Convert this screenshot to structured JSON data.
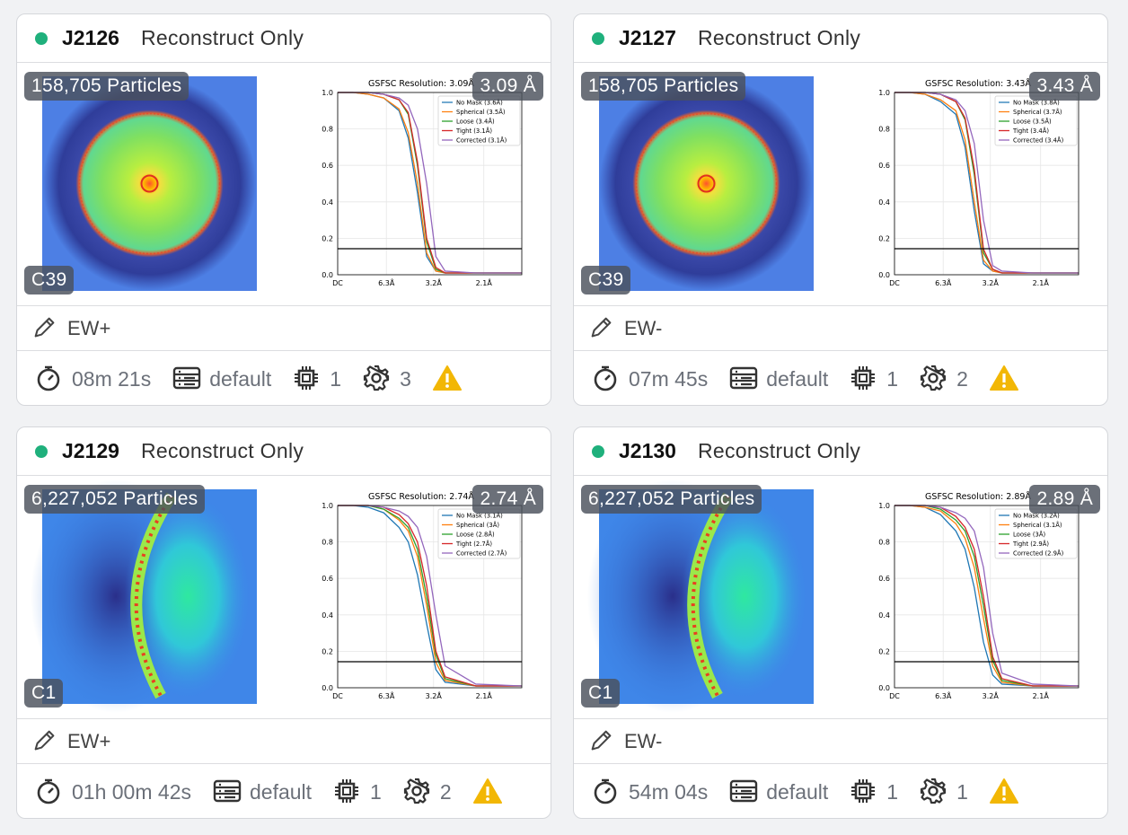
{
  "cards": [
    {
      "id": "J2126",
      "title": "Reconstruct Only",
      "particles": "158,705 Particles",
      "resolution": "3.09 Å",
      "symmetry": "C39",
      "note": "EW+",
      "time": "08m 21s",
      "lane": "default",
      "gpus": "1",
      "params": "3",
      "fsc": {
        "type": "line",
        "title": "GSFSC Resolution: 3.09Å",
        "x": [
          0,
          0.05,
          0.1,
          0.15,
          0.2,
          0.23,
          0.26,
          0.29,
          0.32,
          0.35,
          0.45,
          0.6
        ],
        "xlim": [
          0,
          0.6
        ],
        "ylim": [
          0,
          1
        ],
        "xticks": [
          {
            "value": 0,
            "label": "DC"
          },
          {
            "value": 0.1587,
            "label": "6.3Å"
          },
          {
            "value": 0.3125,
            "label": "3.2Å"
          },
          {
            "value": 0.4762,
            "label": "2.1Å"
          }
        ],
        "yticks": [
          {
            "value": 0,
            "label": "0.0"
          },
          0.2,
          0.4,
          0.6,
          0.8,
          {
            "value": 1,
            "label": "1.0"
          }
        ],
        "threshold": 0.143,
        "series": [
          {
            "name": "No Mask (3.6Å)",
            "color": "#1f77b4",
            "values": [
              1,
              1,
              0.99,
              0.97,
              0.9,
              0.75,
              0.45,
              0.1,
              0.02,
              0.01,
              0.01,
              0.01
            ]
          },
          {
            "name": "Spherical (3.5Å)",
            "color": "#ff7f0e",
            "values": [
              1,
              1,
              0.99,
              0.97,
              0.91,
              0.78,
              0.5,
              0.12,
              0.02,
              0.01,
              0.01,
              0.01
            ]
          },
          {
            "name": "Loose (3.4Å)",
            "color": "#2ca02c",
            "values": [
              1,
              1,
              1,
              0.99,
              0.96,
              0.88,
              0.6,
              0.18,
              0.03,
              0.01,
              0.01,
              0.01
            ]
          },
          {
            "name": "Tight (3.1Å)",
            "color": "#d62728",
            "values": [
              1,
              1,
              1,
              0.99,
              0.96,
              0.89,
              0.62,
              0.2,
              0.04,
              0.01,
              0.01,
              0.01
            ]
          },
          {
            "name": "Corrected (3.1Å)",
            "color": "#9467bd",
            "values": [
              1,
              1,
              1,
              0.99,
              0.97,
              0.93,
              0.8,
              0.5,
              0.1,
              0.02,
              0.01,
              0.01
            ]
          }
        ]
      }
    },
    {
      "id": "J2127",
      "title": "Reconstruct Only",
      "particles": "158,705 Particles",
      "resolution": "3.43 Å",
      "symmetry": "C39",
      "note": "EW-",
      "time": "07m 45s",
      "lane": "default",
      "gpus": "1",
      "params": "2",
      "fsc": {
        "type": "line",
        "title": "GSFSC Resolution: 3.43Å",
        "x": [
          0,
          0.05,
          0.1,
          0.15,
          0.2,
          0.23,
          0.26,
          0.29,
          0.32,
          0.35,
          0.45,
          0.6
        ],
        "xlim": [
          0,
          0.6
        ],
        "ylim": [
          0,
          1
        ],
        "xticks": [
          {
            "value": 0,
            "label": "DC"
          },
          {
            "value": 0.1587,
            "label": "6.3Å"
          },
          {
            "value": 0.3125,
            "label": "3.2Å"
          },
          {
            "value": 0.4762,
            "label": "2.1Å"
          }
        ],
        "yticks": [
          {
            "value": 0,
            "label": "0.0"
          },
          0.2,
          0.4,
          0.6,
          0.8,
          {
            "value": 1,
            "label": "1.0"
          }
        ],
        "threshold": 0.143,
        "series": [
          {
            "name": "No Mask (3.8Å)",
            "color": "#1f77b4",
            "values": [
              1,
              1,
              0.99,
              0.95,
              0.88,
              0.7,
              0.35,
              0.06,
              0.02,
              0.01,
              0.01,
              0.01
            ]
          },
          {
            "name": "Spherical (3.7Å)",
            "color": "#ff7f0e",
            "values": [
              1,
              1,
              0.99,
              0.96,
              0.9,
              0.74,
              0.4,
              0.08,
              0.02,
              0.01,
              0.01,
              0.01
            ]
          },
          {
            "name": "Loose (3.5Å)",
            "color": "#2ca02c",
            "values": [
              1,
              1,
              1,
              0.99,
              0.95,
              0.85,
              0.55,
              0.12,
              0.03,
              0.01,
              0.01,
              0.01
            ]
          },
          {
            "name": "Tight (3.4Å)",
            "color": "#d62728",
            "values": [
              1,
              1,
              1,
              0.99,
              0.95,
              0.86,
              0.58,
              0.14,
              0.03,
              0.01,
              0.01,
              0.01
            ]
          },
          {
            "name": "Corrected (3.4Å)",
            "color": "#9467bd",
            "values": [
              1,
              1,
              1,
              0.99,
              0.96,
              0.9,
              0.72,
              0.3,
              0.05,
              0.02,
              0.01,
              0.01
            ]
          }
        ]
      }
    },
    {
      "id": "J2129",
      "title": "Reconstruct Only",
      "particles": "6,227,052 Particles",
      "resolution": "2.74 Å",
      "symmetry": "C1",
      "note": "EW+",
      "time": "01h 00m 42s",
      "lane": "default",
      "gpus": "1",
      "params": "2",
      "fsc": {
        "type": "line",
        "title": "GSFSC Resolution: 2.74Å",
        "x": [
          0,
          0.05,
          0.1,
          0.15,
          0.2,
          0.23,
          0.26,
          0.29,
          0.32,
          0.35,
          0.45,
          0.6
        ],
        "xlim": [
          0,
          0.6
        ],
        "ylim": [
          0,
          1
        ],
        "xticks": [
          {
            "value": 0,
            "label": "DC"
          },
          {
            "value": 0.1587,
            "label": "6.3Å"
          },
          {
            "value": 0.3125,
            "label": "3.2Å"
          },
          {
            "value": 0.4762,
            "label": "2.1Å"
          }
        ],
        "yticks": [
          {
            "value": 0,
            "label": "0.0"
          },
          0.2,
          0.4,
          0.6,
          0.8,
          {
            "value": 1,
            "label": "1.0"
          }
        ],
        "threshold": 0.143,
        "series": [
          {
            "name": "No Mask (3.1Å)",
            "color": "#1f77b4",
            "values": [
              1,
              1,
              0.99,
              0.96,
              0.88,
              0.8,
              0.62,
              0.35,
              0.1,
              0.03,
              0.01,
              0.01
            ]
          },
          {
            "name": "Spherical (3Å)",
            "color": "#ff7f0e",
            "values": [
              1,
              1,
              1,
              0.98,
              0.92,
              0.86,
              0.72,
              0.45,
              0.14,
              0.04,
              0.01,
              0.01
            ]
          },
          {
            "name": "Loose (2.8Å)",
            "color": "#2ca02c",
            "values": [
              1,
              1,
              1,
              0.98,
              0.93,
              0.88,
              0.76,
              0.5,
              0.18,
              0.05,
              0.01,
              0.01
            ]
          },
          {
            "name": "Tight (2.7Å)",
            "color": "#d62728",
            "values": [
              1,
              1,
              1,
              0.99,
              0.95,
              0.9,
              0.8,
              0.56,
              0.2,
              0.06,
              0.01,
              0.01
            ]
          },
          {
            "name": "Corrected (2.7Å)",
            "color": "#9467bd",
            "values": [
              1,
              1,
              1,
              0.99,
              0.97,
              0.94,
              0.88,
              0.72,
              0.4,
              0.12,
              0.02,
              0.01
            ]
          }
        ]
      }
    },
    {
      "id": "J2130",
      "title": "Reconstruct Only",
      "particles": "6,227,052 Particles",
      "resolution": "2.89 Å",
      "symmetry": "C1",
      "note": "EW-",
      "time": "54m 04s",
      "lane": "default",
      "gpus": "1",
      "params": "1",
      "fsc": {
        "type": "line",
        "title": "GSFSC Resolution: 2.89Å",
        "x": [
          0,
          0.05,
          0.1,
          0.15,
          0.2,
          0.23,
          0.26,
          0.29,
          0.32,
          0.35,
          0.45,
          0.6
        ],
        "xlim": [
          0,
          0.6
        ],
        "ylim": [
          0,
          1
        ],
        "xticks": [
          {
            "value": 0,
            "label": "DC"
          },
          {
            "value": 0.1587,
            "label": "6.3Å"
          },
          {
            "value": 0.3125,
            "label": "3.2Å"
          },
          {
            "value": 0.4762,
            "label": "2.1Å"
          }
        ],
        "yticks": [
          {
            "value": 0,
            "label": "0.0"
          },
          0.2,
          0.4,
          0.6,
          0.8,
          {
            "value": 1,
            "label": "1.0"
          }
        ],
        "threshold": 0.143,
        "series": [
          {
            "name": "No Mask (3.2Å)",
            "color": "#1f77b4",
            "values": [
              1,
              1,
              0.99,
              0.95,
              0.86,
              0.76,
              0.55,
              0.25,
              0.07,
              0.02,
              0.01,
              0.01
            ]
          },
          {
            "name": "Spherical (3.1Å)",
            "color": "#ff7f0e",
            "values": [
              1,
              1,
              0.99,
              0.97,
              0.9,
              0.82,
              0.66,
              0.38,
              0.12,
              0.03,
              0.01,
              0.01
            ]
          },
          {
            "name": "Loose (3Å)",
            "color": "#2ca02c",
            "values": [
              1,
              1,
              1,
              0.98,
              0.92,
              0.86,
              0.72,
              0.45,
              0.15,
              0.04,
              0.01,
              0.01
            ]
          },
          {
            "name": "Tight (2.9Å)",
            "color": "#d62728",
            "values": [
              1,
              1,
              1,
              0.99,
              0.94,
              0.88,
              0.76,
              0.5,
              0.17,
              0.05,
              0.01,
              0.01
            ]
          },
          {
            "name": "Corrected (2.9Å)",
            "color": "#9467bd",
            "values": [
              1,
              1,
              1,
              0.99,
              0.96,
              0.93,
              0.86,
              0.66,
              0.3,
              0.08,
              0.02,
              0.01
            ]
          }
        ]
      }
    }
  ]
}
